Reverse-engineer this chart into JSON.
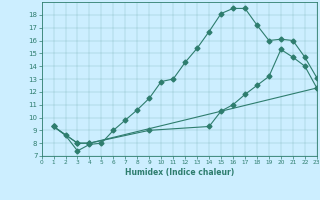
{
  "xlabel": "Humidex (Indice chaleur)",
  "background_color": "#cceeff",
  "line_color": "#2e7d6e",
  "xlim": [
    0,
    23
  ],
  "ylim": [
    7,
    19
  ],
  "xticks": [
    0,
    1,
    2,
    3,
    4,
    5,
    6,
    7,
    8,
    9,
    10,
    11,
    12,
    13,
    14,
    15,
    16,
    17,
    18,
    19,
    20,
    21,
    22,
    23
  ],
  "yticks": [
    7,
    8,
    9,
    10,
    11,
    12,
    13,
    14,
    15,
    16,
    17,
    18
  ],
  "line1_x": [
    1,
    2,
    3,
    4,
    5,
    6,
    7,
    8,
    9,
    10,
    11,
    12,
    13,
    14,
    15,
    16,
    17,
    18,
    19,
    20,
    21,
    22,
    23
  ],
  "line1_y": [
    9.3,
    8.6,
    7.4,
    7.9,
    8.0,
    9.0,
    9.8,
    10.6,
    11.5,
    12.8,
    13.0,
    14.3,
    15.4,
    16.7,
    18.1,
    18.5,
    18.5,
    17.2,
    16.0,
    16.1,
    16.0,
    14.7,
    13.1
  ],
  "line2_x": [
    1,
    3,
    4,
    9,
    14,
    15,
    16,
    17,
    18,
    19,
    20,
    21,
    22,
    23
  ],
  "line2_y": [
    9.3,
    8.0,
    8.0,
    9.0,
    9.3,
    10.5,
    11.0,
    11.8,
    12.5,
    13.2,
    15.3,
    14.7,
    14.0,
    12.3
  ],
  "line3_x": [
    1,
    3,
    4,
    23
  ],
  "line3_y": [
    9.3,
    8.0,
    8.0,
    12.3
  ]
}
